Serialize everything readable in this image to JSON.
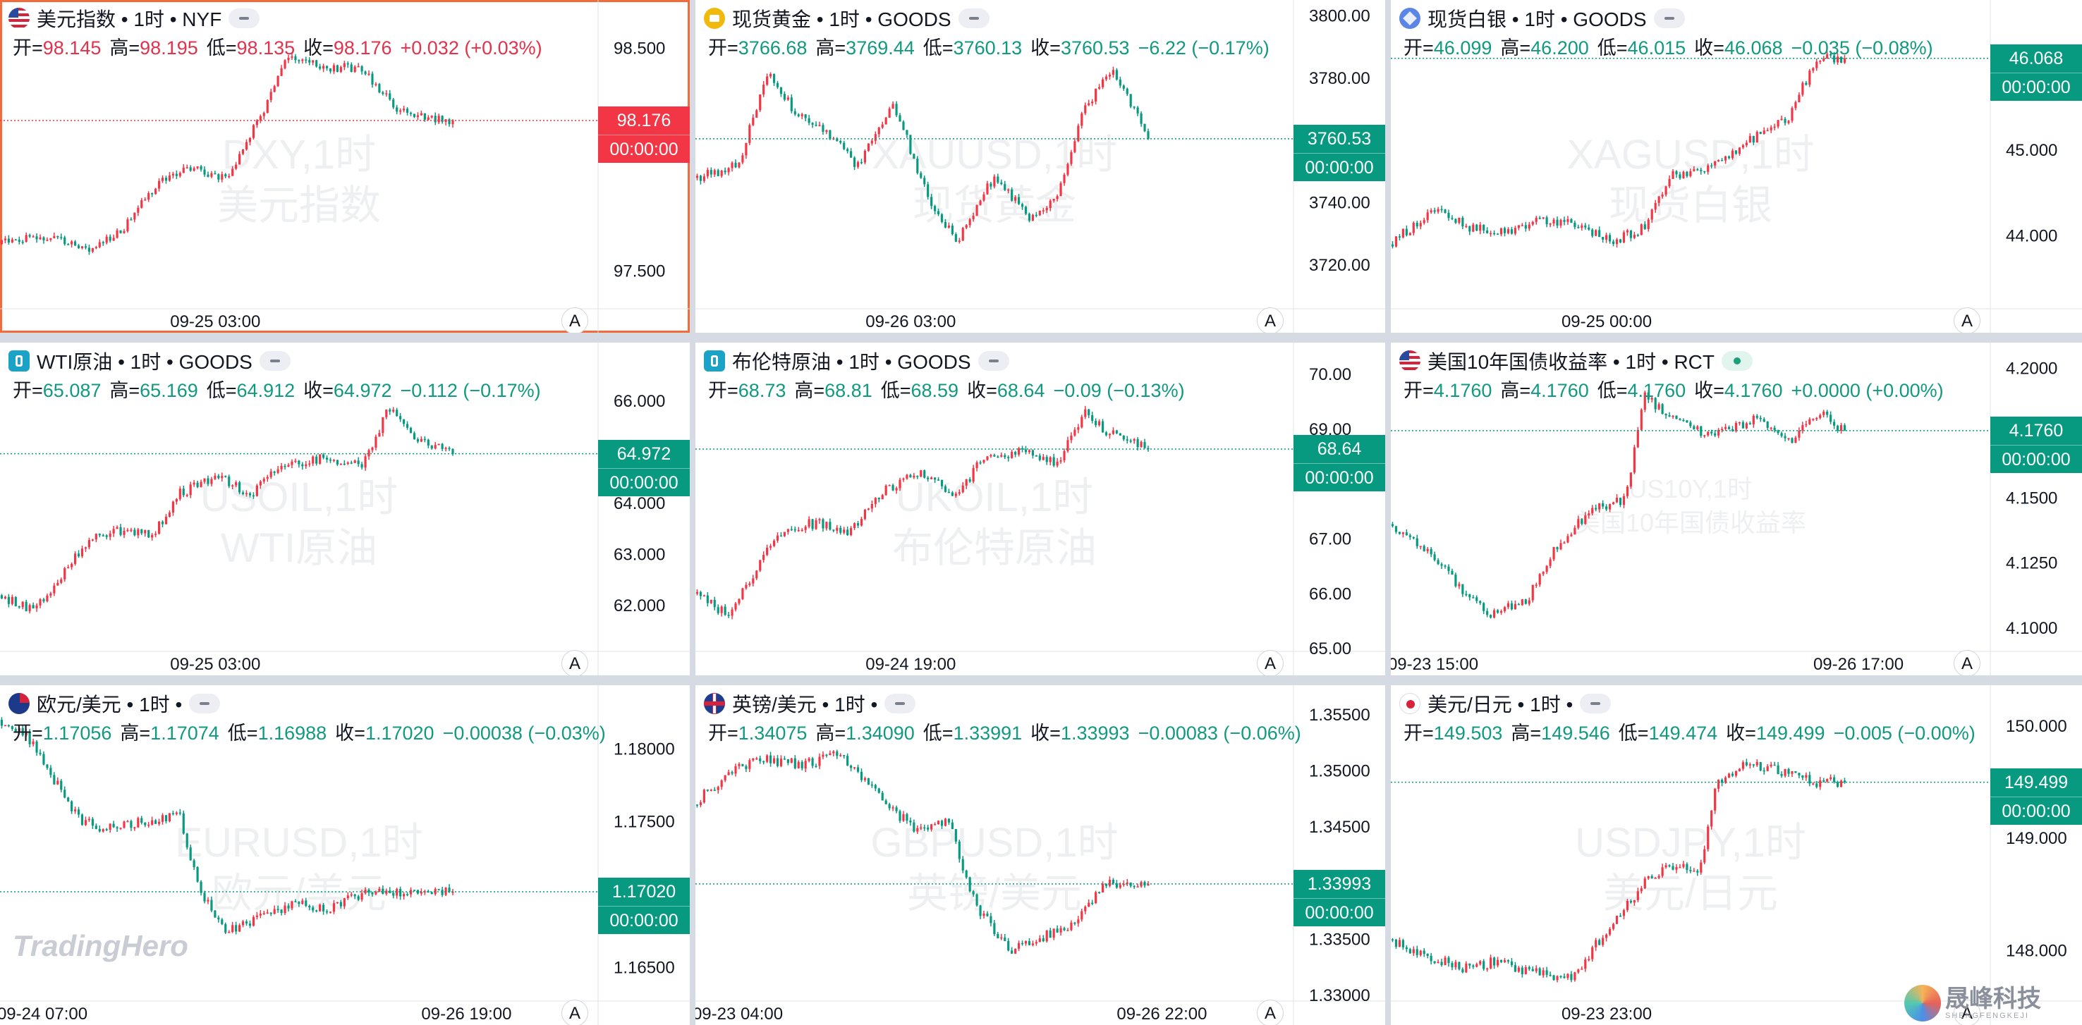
{
  "brand": "TradingHero",
  "corner_logo": {
    "cn": "晟峰科技",
    "en": "SHENGFENGKEJI"
  },
  "labels": {
    "open": "开=",
    "high": "高=",
    "low": "低=",
    "close": "收=",
    "auto": "A"
  },
  "panels": [
    {
      "id": "dxy",
      "icon": "flag-us",
      "icon_name": "us-flag-icon",
      "title": "美元指数 • 1时 • NYF",
      "pill": "normal",
      "active": true,
      "ohlc": {
        "o": "98.145",
        "h": "98.195",
        "l": "98.135",
        "c": "98.176",
        "chg": "+0.032 (+0.03%)",
        "dir": "up"
      },
      "watermark": [
        "DXY,1时",
        "美元指数"
      ],
      "price": {
        "value": "98.176",
        "countdown": "00:00:00",
        "color": "#f23645"
      },
      "y_ticks": [
        "98.500",
        "97.500"
      ],
      "time_labels": [
        "09-25 03:00"
      ],
      "chart_data": {
        "type": "candlestick",
        "ylim": [
          97.33,
          98.66
        ],
        "y_ticks": [
          98.5,
          97.5
        ],
        "last": 98.176,
        "level_points": [
          [
            0.0,
            97.62
          ],
          [
            0.12,
            97.66
          ],
          [
            0.2,
            97.6
          ],
          [
            0.28,
            97.7
          ],
          [
            0.36,
            97.92
          ],
          [
            0.42,
            97.96
          ],
          [
            0.5,
            97.91
          ],
          [
            0.58,
            98.2
          ],
          [
            0.64,
            98.48
          ],
          [
            0.72,
            98.42
          ],
          [
            0.8,
            98.4
          ],
          [
            0.88,
            98.22
          ],
          [
            1.0,
            98.176
          ]
        ]
      }
    },
    {
      "id": "xauusd",
      "icon": "coin-gold",
      "icon_name": "gold-coin-icon",
      "title": "现货黄金 • 1时 • GOODS",
      "pill": "normal",
      "active": false,
      "ohlc": {
        "o": "3766.68",
        "h": "3769.44",
        "l": "3760.13",
        "c": "3760.53",
        "chg": "−6.22 (−0.17%)",
        "dir": "dn"
      },
      "watermark": [
        "XAUUSD,1时",
        "现货黄金"
      ],
      "price": {
        "value": "3760.53",
        "countdown": "00:00:00",
        "color": "#089981"
      },
      "y_ticks": [
        "3800.00",
        "3780.00",
        "3760.00",
        "3740.00",
        "3720.00"
      ],
      "time_labels": [
        "09-26 03:00"
      ],
      "chart_data": {
        "type": "candlestick",
        "ylim": [
          3706.0,
          3801.0
        ],
        "y_ticks": [
          3800,
          3780,
          3760,
          3740,
          3720
        ],
        "last": 3760.53,
        "level_points": [
          [
            0.0,
            3748
          ],
          [
            0.1,
            3752
          ],
          [
            0.16,
            3782
          ],
          [
            0.22,
            3770
          ],
          [
            0.3,
            3762
          ],
          [
            0.36,
            3752
          ],
          [
            0.44,
            3772
          ],
          [
            0.52,
            3740
          ],
          [
            0.58,
            3728
          ],
          [
            0.66,
            3748
          ],
          [
            0.74,
            3735
          ],
          [
            0.8,
            3742
          ],
          [
            0.86,
            3770
          ],
          [
            0.92,
            3783
          ],
          [
            1.0,
            3760.53
          ]
        ]
      }
    },
    {
      "id": "xagusd",
      "icon": "coin-silver",
      "icon_name": "silver-coin-icon",
      "title": "现货白银 • 1时 • GOODS",
      "pill": "normal",
      "active": false,
      "ohlc": {
        "o": "46.099",
        "h": "46.200",
        "l": "46.015",
        "c": "46.068",
        "chg": "−0.035 (−0.08%)",
        "dir": "dn"
      },
      "watermark": [
        "XAGUSD,1时",
        "现货白银"
      ],
      "price": {
        "value": "46.068",
        "countdown": "00:00:00",
        "color": "#089981"
      },
      "y_ticks": [
        "45.000",
        "44.000"
      ],
      "time_labels": [
        "09-25 00:00"
      ],
      "chart_data": {
        "type": "candlestick",
        "ylim": [
          43.15,
          46.6
        ],
        "y_ticks": [
          45.0,
          44.0
        ],
        "last": 46.068,
        "level_points": [
          [
            0.0,
            43.9
          ],
          [
            0.1,
            44.3
          ],
          [
            0.18,
            44.1
          ],
          [
            0.26,
            44.05
          ],
          [
            0.34,
            44.2
          ],
          [
            0.42,
            44.1
          ],
          [
            0.5,
            43.95
          ],
          [
            0.56,
            44.1
          ],
          [
            0.62,
            44.7
          ],
          [
            0.7,
            44.8
          ],
          [
            0.76,
            45.0
          ],
          [
            0.82,
            45.2
          ],
          [
            0.88,
            45.4
          ],
          [
            0.94,
            46.1
          ],
          [
            1.0,
            46.068
          ]
        ]
      }
    },
    {
      "id": "wti",
      "icon": "oil",
      "icon_name": "oil-barrel-icon",
      "title": "WTI原油 • 1时 • GOODS",
      "pill": "normal",
      "active": false,
      "ohlc": {
        "o": "65.087",
        "h": "65.169",
        "l": "64.912",
        "c": "64.972",
        "chg": "−0.112 (−0.17%)",
        "dir": "dn"
      },
      "watermark": [
        "USOIL,1时",
        "WTI原油"
      ],
      "price": {
        "value": "64.972",
        "countdown": "00:00:00",
        "color": "#089981"
      },
      "y_ticks": [
        "66.000",
        "64.000",
        "63.000",
        "62.000"
      ],
      "time_labels": [
        "09-25 03:00"
      ],
      "chart_data": {
        "type": "candlestick",
        "ylim": [
          61.1,
          66.9
        ],
        "y_ticks": [
          66.0,
          64.0,
          63.0,
          62.0
        ],
        "last": 64.972,
        "level_points": [
          [
            0.0,
            62.2
          ],
          [
            0.08,
            61.9
          ],
          [
            0.14,
            62.6
          ],
          [
            0.2,
            63.3
          ],
          [
            0.28,
            63.5
          ],
          [
            0.34,
            63.4
          ],
          [
            0.4,
            64.2
          ],
          [
            0.48,
            64.5
          ],
          [
            0.56,
            64.2
          ],
          [
            0.62,
            64.7
          ],
          [
            0.72,
            64.9
          ],
          [
            0.8,
            64.7
          ],
          [
            0.86,
            65.9
          ],
          [
            0.92,
            65.3
          ],
          [
            1.0,
            64.972
          ]
        ]
      }
    },
    {
      "id": "brent",
      "icon": "oil",
      "icon_name": "oil-barrel-icon",
      "title": "布伦特原油 • 1时 • GOODS",
      "pill": "normal",
      "active": false,
      "ohlc": {
        "o": "68.73",
        "h": "68.81",
        "l": "68.59",
        "c": "68.64",
        "chg": "−0.09 (−0.13%)",
        "dir": "dn"
      },
      "watermark": [
        "UKOIL,1时",
        "布伦特原油"
      ],
      "price": {
        "value": "68.64",
        "countdown": "00:00:00",
        "color": "#089981"
      },
      "y_ticks": [
        "70.00",
        "69.00",
        "67.00",
        "66.00",
        "65.00"
      ],
      "time_labels": [
        "09-24 19:00"
      ],
      "chart_data": {
        "type": "candlestick",
        "ylim": [
          64.95,
          70.35
        ],
        "y_ticks": [
          70.0,
          69.0,
          67.0,
          66.0,
          65.0
        ],
        "last": 68.64,
        "level_points": [
          [
            0.0,
            66.0
          ],
          [
            0.08,
            65.6
          ],
          [
            0.14,
            66.5
          ],
          [
            0.2,
            67.2
          ],
          [
            0.28,
            67.3
          ],
          [
            0.34,
            67.1
          ],
          [
            0.42,
            67.9
          ],
          [
            0.5,
            68.2
          ],
          [
            0.58,
            67.8
          ],
          [
            0.64,
            68.5
          ],
          [
            0.72,
            68.6
          ],
          [
            0.8,
            68.4
          ],
          [
            0.86,
            69.3
          ],
          [
            0.92,
            68.9
          ],
          [
            1.0,
            68.64
          ]
        ]
      }
    },
    {
      "id": "us10y",
      "icon": "flag-us",
      "icon_name": "us-flag-icon",
      "title": "美国10年国债收益率 • 1时 • RCT",
      "pill": "live",
      "active": false,
      "ohlc": {
        "o": "4.1760",
        "h": "4.1760",
        "l": "4.1760",
        "c": "4.1760",
        "chg": "+0.0000 (+0.00%)",
        "dir": "dn"
      },
      "watermark": [
        "US10Y,1时",
        "美国10年国债收益率"
      ],
      "watermark_small": true,
      "price": {
        "value": "4.1760",
        "countdown": "00:00:00",
        "color": "#089981"
      },
      "y_ticks": [
        "4.2000",
        "4.1500",
        "4.1250",
        "4.1000"
      ],
      "time_labels": [
        "09-23 15:00",
        "09-26 17:00"
      ],
      "chart_data": {
        "type": "candlestick",
        "ylim": [
          4.091,
          4.205
        ],
        "y_ticks": [
          4.2,
          4.15,
          4.125,
          4.1
        ],
        "last": 4.176,
        "level_points": [
          [
            0.0,
            4.14
          ],
          [
            0.08,
            4.13
          ],
          [
            0.16,
            4.115
          ],
          [
            0.22,
            4.105
          ],
          [
            0.3,
            4.11
          ],
          [
            0.36,
            4.13
          ],
          [
            0.44,
            4.145
          ],
          [
            0.52,
            4.15
          ],
          [
            0.56,
            4.19
          ],
          [
            0.62,
            4.18
          ],
          [
            0.7,
            4.175
          ],
          [
            0.8,
            4.18
          ],
          [
            0.88,
            4.172
          ],
          [
            0.94,
            4.183
          ],
          [
            1.0,
            4.176
          ]
        ]
      }
    },
    {
      "id": "eurusd",
      "icon": "flag-eu",
      "icon_name": "eu-flag-icon",
      "title": "欧元/美元 • 1时 •",
      "pill": "normal",
      "active": false,
      "ohlc": {
        "o": "1.17056",
        "h": "1.17074",
        "l": "1.16988",
        "c": "1.17020",
        "chg": "−0.00038 (−0.03%)",
        "dir": "dn"
      },
      "watermark": [
        "EURUSD,1时",
        "欧元/美元"
      ],
      "price": {
        "value": "1.17020",
        "countdown": "00:00:00",
        "color": "#089981"
      },
      "y_ticks": [
        "1.18000",
        "1.17500",
        "1.16500"
      ],
      "time_labels": [
        "09-24 07:00",
        "09-26 19:00"
      ],
      "chart_data": {
        "type": "candlestick",
        "ylim": [
          1.1627,
          1.1835
        ],
        "y_ticks": [
          1.18,
          1.175,
          1.165
        ],
        "last": 1.1702,
        "level_points": [
          [
            0.0,
            1.182
          ],
          [
            0.06,
            1.181
          ],
          [
            0.12,
            1.178
          ],
          [
            0.18,
            1.175
          ],
          [
            0.24,
            1.1745
          ],
          [
            0.32,
            1.175
          ],
          [
            0.4,
            1.1755
          ],
          [
            0.44,
            1.1705
          ],
          [
            0.5,
            1.1675
          ],
          [
            0.58,
            1.1685
          ],
          [
            0.66,
            1.1695
          ],
          [
            0.72,
            1.169
          ],
          [
            0.8,
            1.17
          ],
          [
            1.0,
            1.1702
          ]
        ]
      }
    },
    {
      "id": "gbpusd",
      "icon": "flag-uk",
      "icon_name": "uk-flag-icon",
      "title": "英镑/美元 • 1时 •",
      "pill": "normal",
      "active": false,
      "ohlc": {
        "o": "1.34075",
        "h": "1.34090",
        "l": "1.33991",
        "c": "1.33993",
        "chg": "−0.00083 (−0.06%)",
        "dir": "dn"
      },
      "watermark": [
        "GBPUSD,1时",
        "英镑/美元"
      ],
      "price": {
        "value": "1.33993",
        "countdown": "00:00:00",
        "color": "#089981"
      },
      "y_ticks": [
        "1.35500",
        "1.35000",
        "1.34500",
        "1.34000",
        "1.33500",
        "1.33000"
      ],
      "time_labels": [
        "09-23 04:00",
        "09-26 22:00"
      ],
      "chart_data": {
        "type": "candlestick",
        "ylim": [
          1.3295,
          1.3565
        ],
        "y_ticks": [
          1.355,
          1.35,
          1.345,
          1.34,
          1.335,
          1.33
        ],
        "last": 1.33993,
        "level_points": [
          [
            0.0,
            1.347
          ],
          [
            0.08,
            1.35
          ],
          [
            0.16,
            1.351
          ],
          [
            0.24,
            1.3505
          ],
          [
            0.32,
            1.3515
          ],
          [
            0.4,
            1.348
          ],
          [
            0.48,
            1.345
          ],
          [
            0.56,
            1.3455
          ],
          [
            0.62,
            1.338
          ],
          [
            0.7,
            1.334
          ],
          [
            0.78,
            1.3355
          ],
          [
            0.84,
            1.3365
          ],
          [
            0.9,
            1.34
          ],
          [
            1.0,
            1.33993
          ]
        ]
      }
    },
    {
      "id": "usdjpy",
      "icon": "flag-jp",
      "icon_name": "japan-flag-icon",
      "title": "美元/日元 • 1时 •",
      "pill": "normal",
      "active": false,
      "ohlc": {
        "o": "149.503",
        "h": "149.546",
        "l": "149.474",
        "c": "149.499",
        "chg": "−0.005 (−0.00%)",
        "dir": "dn"
      },
      "watermark": [
        "USDJPY,1时",
        "美元/日元"
      ],
      "price": {
        "value": "149.499",
        "countdown": "00:00:00",
        "color": "#089981"
      },
      "y_ticks": [
        "150.000",
        "149.000",
        "148.000"
      ],
      "time_labels": [
        "09-23 23:00"
      ],
      "chart_data": {
        "type": "candlestick",
        "ylim": [
          147.55,
          150.25
        ],
        "y_ticks": [
          150.0,
          149.0,
          148.0
        ],
        "last": 149.499,
        "level_points": [
          [
            0.0,
            148.1
          ],
          [
            0.08,
            147.95
          ],
          [
            0.16,
            147.85
          ],
          [
            0.24,
            147.9
          ],
          [
            0.32,
            147.8
          ],
          [
            0.4,
            147.75
          ],
          [
            0.48,
            148.2
          ],
          [
            0.56,
            148.6
          ],
          [
            0.62,
            148.75
          ],
          [
            0.68,
            148.7
          ],
          [
            0.72,
            149.5
          ],
          [
            0.78,
            149.65
          ],
          [
            0.86,
            149.6
          ],
          [
            0.94,
            149.5
          ],
          [
            1.0,
            149.499
          ]
        ]
      }
    }
  ]
}
